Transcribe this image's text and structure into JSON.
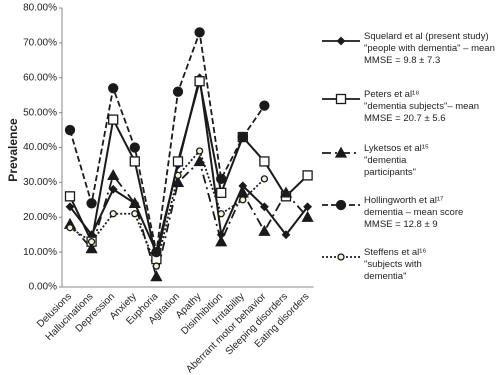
{
  "chart_data": {
    "type": "line",
    "y_label": "Prevalence",
    "categories": [
      "Delusions",
      "Hallucinations",
      "Depression",
      "Anxiety",
      "Euphoria",
      "Agitation",
      "Apathy",
      "Disinhibition",
      "Irritability",
      "Aberrant motor behavior",
      "Sleeping disorders",
      "Eating disorders"
    ],
    "ylim": [
      0,
      80
    ],
    "yticks": [
      {
        "value": 0,
        "label": "0.00%"
      },
      {
        "value": 10,
        "label": "10.00%"
      },
      {
        "value": 20,
        "label": "20.00%"
      },
      {
        "value": 30,
        "label": "30.00%"
      },
      {
        "value": 40,
        "label": "40.00%"
      },
      {
        "value": 50,
        "label": "50.00%"
      },
      {
        "value": 60,
        "label": "60.00%"
      },
      {
        "value": 70,
        "label": "70.00%"
      },
      {
        "value": 80,
        "label": "80.00%"
      }
    ],
    "grid": false,
    "legend": "right",
    "series": [
      {
        "name": "Squelard et al (present study)\n\"people with dementia\" – mean\nMMSE = 9.8 ± 7.3",
        "color": "#1a1a1a",
        "dash": "none",
        "marker": "diamond",
        "values": [
          23,
          15,
          28,
          24,
          10,
          35,
          60,
          15,
          29,
          23,
          15,
          23
        ]
      },
      {
        "name": "Peters et al¹⁸\n\"dementia subjects\"– mean\nMMSE = 20.7 ± 5.6",
        "color": "#1a1a1a",
        "dash": "none",
        "marker": "square",
        "values": [
          26,
          13,
          48,
          36,
          8,
          36,
          59,
          27,
          43,
          36,
          26,
          32
        ]
      },
      {
        "name": "Lyketsos et al¹⁵\n\"dementia\nparticipants\"",
        "color": "#1a1a1a",
        "dash": "9 4 2 4",
        "marker": "triangle",
        "values": [
          18,
          11,
          32,
          24,
          3,
          30,
          36,
          13,
          27,
          16,
          27,
          20
        ]
      },
      {
        "name": "Hollingworth et al¹⁷\ndementia – mean score\nMMSE = 12.8 ± 9",
        "color": "#1a1a1a",
        "dash": "6 3",
        "marker": "circle",
        "values": [
          45,
          24,
          57,
          40,
          10,
          56,
          73,
          31,
          43,
          52,
          null,
          null
        ]
      },
      {
        "name": "Steffens et al¹⁶\n\"subjects with\ndementia\"",
        "color": "#1a1a1a",
        "dash": "2 2",
        "marker": "small-circle",
        "values": [
          17,
          13,
          21,
          21,
          6,
          32,
          39,
          21,
          25,
          31,
          null,
          null
        ]
      }
    ]
  }
}
